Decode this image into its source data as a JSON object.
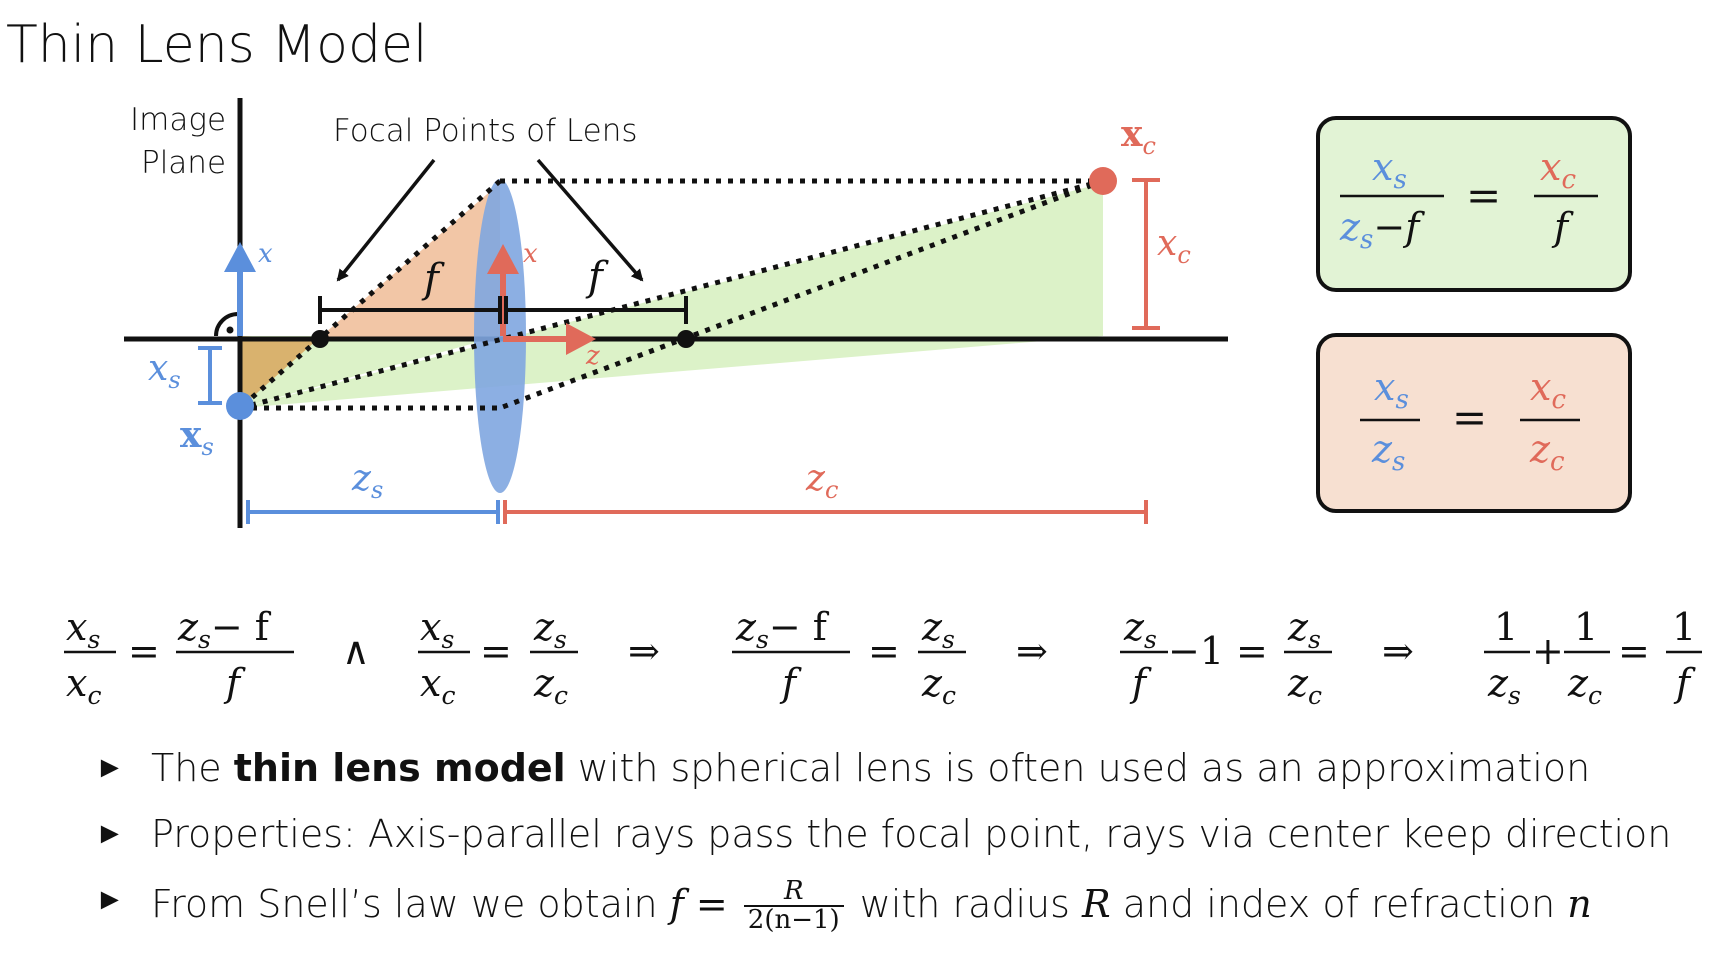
{
  "title": "Thin Lens Model",
  "labels": {
    "image_plane_line1": "Image",
    "image_plane_line2": "Plane",
    "focal_points": "Focal Points of Lens",
    "f": "f",
    "x_axis": "x",
    "z_axis": "z",
    "xs_point": "x",
    "xs_sub": "s",
    "xc_point": "x",
    "xc_sub": "c",
    "xs_height": "x",
    "xc_height": "x",
    "zs": "z",
    "zc": "z",
    "s": "s",
    "c": "c"
  },
  "boxes": {
    "green": {
      "lhs_num": "x",
      "lhs_num_sub": "s",
      "lhs_den": "z",
      "lhs_den_sub": "s",
      "lhs_den_rest": "−f",
      "rhs_num": "x",
      "rhs_num_sub": "c",
      "rhs_den": "f",
      "eq": "="
    },
    "orange": {
      "lhs_num": "x",
      "lhs_num_sub": "s",
      "lhs_den": "z",
      "lhs_den_sub": "s",
      "rhs_num": "x",
      "rhs_num_sub": "c",
      "rhs_den": "z",
      "rhs_den_sub": "c",
      "eq": "="
    }
  },
  "derivation": {
    "and": "∧",
    "implies": "⇒",
    "eq": "=",
    "minus": "−",
    "plus": "+",
    "one": "1",
    "minus_one": "−1",
    "x": "x",
    "z": "z",
    "f": "f",
    "s": "s",
    "c": "c",
    "zs_minus_f": "− f"
  },
  "bullets": {
    "marker": "►",
    "b1_pre": "The ",
    "b1_bold": "thin lens model",
    "b1_post": " with spherical lens is often used as an approximation",
    "b2": "Properties: Axis-parallel rays pass the focal point, rays via center keep direction",
    "b3_pre": "From Snell’s law we obtain ",
    "b3_f": "f",
    "b3_eq": " = ",
    "b3_num": "R",
    "b3_den": "2(n−1)",
    "b3_mid": " with radius ",
    "b3_R": "R",
    "b3_mid2": " and index of refraction ",
    "b3_n": "n"
  },
  "colors": {
    "blue": "#5b8fdc",
    "red": "#e06a5a",
    "green_fill": "#dcf2c8",
    "orange_fill": "#f2c6a6",
    "dark_orange_fill": "#d9b26e",
    "lens_fill": "#7fa6e0",
    "box_green": "#e2f3d5",
    "box_orange": "#f7e0d1"
  }
}
